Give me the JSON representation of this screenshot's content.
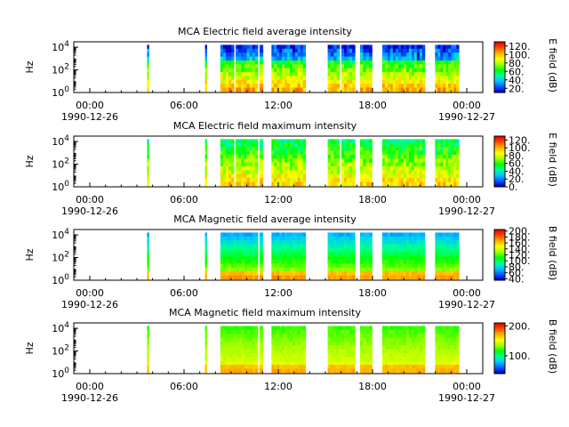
{
  "colors": {
    "colormap": [
      "#0000c8",
      "#0060ff",
      "#00c8ff",
      "#00ff96",
      "#00ff00",
      "#a0ff00",
      "#ffff00",
      "#ffb400",
      "#ff5000",
      "#e60000"
    ],
    "axis": "#000000",
    "background": "#ffffff"
  },
  "chart_data": [
    {
      "type": "heatmap",
      "title": "MCA  Electric field average intensity",
      "ylabel": "Hz",
      "y_ticks": [
        {
          "base": "10",
          "exp": "0"
        },
        {
          "base": "10",
          "exp": "2"
        },
        {
          "base": "10",
          "exp": "4"
        }
      ],
      "ylim": [
        1,
        30000
      ],
      "y_scale": "log",
      "x_ticks": [
        {
          "time": "00:00",
          "date": "1990-12-26"
        },
        {
          "time": "06:00",
          "date": ""
        },
        {
          "time": "12:00",
          "date": ""
        },
        {
          "time": "18:00",
          "date": ""
        },
        {
          "time": "00:00",
          "date": "1990-12-27"
        }
      ],
      "colorbar": {
        "label": "E field (dB)",
        "ticks": [
          "120.",
          "100.",
          "80.",
          "60.",
          "40.",
          "20."
        ],
        "range": [
          10,
          130
        ]
      },
      "data_intervals_hours": [
        [
          4.3,
          4.4
        ],
        [
          7.7,
          7.8
        ],
        [
          8.6,
          9.4
        ],
        [
          9.5,
          10.8
        ],
        [
          10.9,
          11.1
        ],
        [
          11.6,
          13.6
        ],
        [
          14.9,
          15.6
        ],
        [
          15.7,
          16.5
        ],
        [
          16.8,
          17.5
        ],
        [
          18.1,
          20.6
        ],
        [
          21.2,
          22.6
        ]
      ],
      "profile": "e_avg"
    },
    {
      "type": "heatmap",
      "title": "MCA  Electric field maximum intensity",
      "ylabel": "Hz",
      "y_ticks": [
        {
          "base": "10",
          "exp": "0"
        },
        {
          "base": "10",
          "exp": "2"
        },
        {
          "base": "10",
          "exp": "4"
        }
      ],
      "ylim": [
        1,
        30000
      ],
      "y_scale": "log",
      "x_ticks": [
        {
          "time": "00:00",
          "date": "1990-12-26"
        },
        {
          "time": "06:00",
          "date": ""
        },
        {
          "time": "12:00",
          "date": ""
        },
        {
          "time": "18:00",
          "date": ""
        },
        {
          "time": "00:00",
          "date": "1990-12-27"
        }
      ],
      "colorbar": {
        "label": "E field (dB)",
        "ticks": [
          "120.",
          "100.",
          "80.",
          "60.",
          "40.",
          "20.",
          "0."
        ],
        "range": [
          0,
          130
        ]
      },
      "data_intervals_hours": [
        [
          4.3,
          4.4
        ],
        [
          7.7,
          7.8
        ],
        [
          8.6,
          9.4
        ],
        [
          9.5,
          10.8
        ],
        [
          10.9,
          11.1
        ],
        [
          11.6,
          13.6
        ],
        [
          14.9,
          15.6
        ],
        [
          15.7,
          16.5
        ],
        [
          16.8,
          17.5
        ],
        [
          18.1,
          20.6
        ],
        [
          21.2,
          22.6
        ]
      ],
      "profile": "e_max"
    },
    {
      "type": "heatmap",
      "title": "MCA  Magnetic field average intensity",
      "ylabel": "Hz",
      "y_ticks": [
        {
          "base": "10",
          "exp": "0"
        },
        {
          "base": "10",
          "exp": "2"
        },
        {
          "base": "10",
          "exp": "4"
        }
      ],
      "ylim": [
        1,
        30000
      ],
      "y_scale": "log",
      "x_ticks": [
        {
          "time": "00:00",
          "date": "1990-12-26"
        },
        {
          "time": "06:00",
          "date": ""
        },
        {
          "time": "12:00",
          "date": ""
        },
        {
          "time": "18:00",
          "date": ""
        },
        {
          "time": "00:00",
          "date": "1990-12-27"
        }
      ],
      "colorbar": {
        "label": "B field (dB)",
        "ticks": [
          "200.",
          "180.",
          "160.",
          "140.",
          "120.",
          "100.",
          "80.",
          "60.",
          "40."
        ],
        "range": [
          35,
          205
        ]
      },
      "data_intervals_hours": [
        [
          4.3,
          4.4
        ],
        [
          7.7,
          7.8
        ],
        [
          8.6,
          10.8
        ],
        [
          10.9,
          11.1
        ],
        [
          11.6,
          13.6
        ],
        [
          14.9,
          16.5
        ],
        [
          16.8,
          17.5
        ],
        [
          18.1,
          20.6
        ],
        [
          21.2,
          22.6
        ]
      ],
      "profile": "b_avg"
    },
    {
      "type": "heatmap",
      "title": "MCA  Magnetic field maximum intensity",
      "ylabel": "Hz",
      "y_ticks": [
        {
          "base": "10",
          "exp": "0"
        },
        {
          "base": "10",
          "exp": "2"
        },
        {
          "base": "10",
          "exp": "4"
        }
      ],
      "ylim": [
        1,
        30000
      ],
      "y_scale": "log",
      "x_ticks": [
        {
          "time": "00:00",
          "date": "1990-12-26"
        },
        {
          "time": "06:00",
          "date": ""
        },
        {
          "time": "12:00",
          "date": ""
        },
        {
          "time": "18:00",
          "date": ""
        },
        {
          "time": "00:00",
          "date": "1990-12-27"
        }
      ],
      "colorbar": {
        "label": "B field (dB)",
        "ticks": [
          "200.",
          "100."
        ],
        "range": [
          40,
          210
        ]
      },
      "data_intervals_hours": [
        [
          4.3,
          4.4
        ],
        [
          7.7,
          7.8
        ],
        [
          8.6,
          10.8
        ],
        [
          10.9,
          11.1
        ],
        [
          11.6,
          13.6
        ],
        [
          14.9,
          16.5
        ],
        [
          16.8,
          17.5
        ],
        [
          18.1,
          20.6
        ],
        [
          21.2,
          22.6
        ]
      ],
      "profile": "b_max"
    }
  ]
}
